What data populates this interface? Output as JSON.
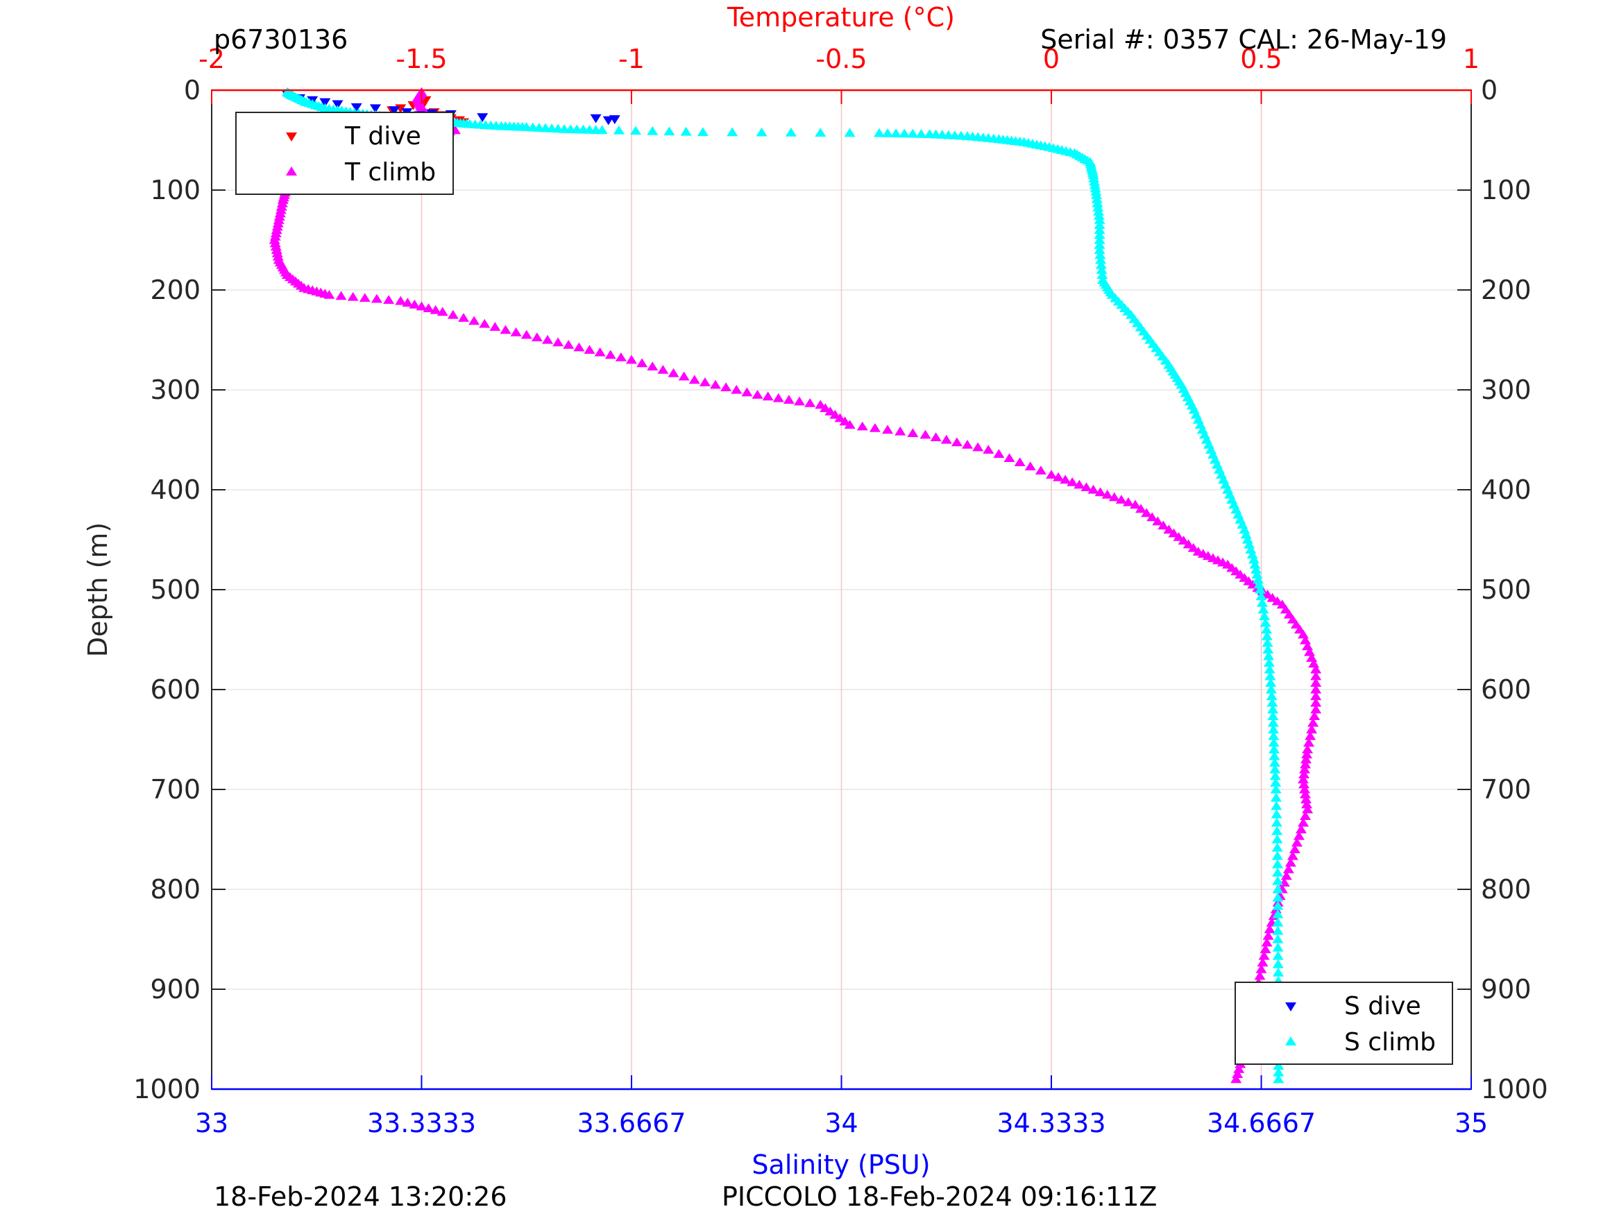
{
  "header": {
    "left_label": "p6730136",
    "right_label": "Serial #: 0357  CAL: 26-May-19"
  },
  "footer": {
    "left_label": "18-Feb-2024 13:20:26",
    "right_label": "PICCOLO 18-Feb-2024 09:16:11Z"
  },
  "colors": {
    "t_dive": "#ff0000",
    "t_climb": "#ff00ff",
    "s_dive": "#0000ff",
    "s_climb": "#00ffff",
    "temp_axis": "#ff0000",
    "sal_axis": "#0000ff",
    "grid": "#e6e6e6",
    "temp_grid": "#f4c6c6"
  },
  "chart_data": {
    "type": "scatter",
    "top_xlabel": "Temperature (°C)",
    "bottom_xlabel": "Salinity (PSU)",
    "ylabel": "Depth (m)",
    "temperature_axis": {
      "range": [
        -2,
        1
      ],
      "ticks": [
        "-2",
        "-1.5",
        "-1",
        "-0.5",
        "0",
        "0.5",
        "1"
      ]
    },
    "salinity_axis": {
      "range": [
        33,
        35
      ],
      "ticks": [
        "33",
        "33.3333",
        "33.6667",
        "34",
        "34.3333",
        "34.6667",
        "35"
      ]
    },
    "depth_axis": {
      "range": [
        0,
        1000
      ],
      "reversed": true,
      "ticks": [
        "0",
        "100",
        "200",
        "300",
        "400",
        "500",
        "600",
        "700",
        "800",
        "900",
        "1000"
      ]
    },
    "grid": true,
    "legends": [
      {
        "placement": "top-left",
        "entries": [
          "T dive",
          "T climb"
        ]
      },
      {
        "placement": "bottom-right",
        "entries": [
          "S dive",
          "S climb"
        ]
      }
    ],
    "series": [
      {
        "name": "T dive",
        "axis": "temperature",
        "marker": "triangle-down",
        "points": [
          [
            -1.57,
            20
          ],
          [
            -1.55,
            18
          ],
          [
            -1.52,
            15
          ],
          [
            -1.5,
            12
          ],
          [
            -1.49,
            10
          ],
          [
            -1.5,
            17
          ],
          [
            -1.47,
            22
          ],
          [
            -1.45,
            25
          ],
          [
            -1.43,
            28
          ],
          [
            -1.41,
            30
          ],
          [
            -1.4,
            32
          ]
        ]
      },
      {
        "name": "T climb",
        "axis": "temperature",
        "marker": "triangle-up",
        "points": [
          [
            -1.5,
            2
          ],
          [
            -1.51,
            8
          ],
          [
            -1.5,
            18
          ],
          [
            -1.48,
            28
          ],
          [
            -1.45,
            34
          ],
          [
            -1.42,
            40
          ],
          [
            -1.5,
            47
          ],
          [
            -1.65,
            55
          ],
          [
            -1.75,
            68
          ],
          [
            -1.8,
            80
          ],
          [
            -1.82,
            95
          ],
          [
            -1.83,
            110
          ],
          [
            -1.84,
            130
          ],
          [
            -1.85,
            150
          ],
          [
            -1.84,
            170
          ],
          [
            -1.82,
            185
          ],
          [
            -1.78,
            198
          ],
          [
            -1.72,
            205
          ],
          [
            -1.55,
            211
          ],
          [
            -1.45,
            222
          ],
          [
            -1.3,
            240
          ],
          [
            -1.15,
            255
          ],
          [
            -1.0,
            270
          ],
          [
            -0.85,
            290
          ],
          [
            -0.7,
            305
          ],
          [
            -0.55,
            315
          ],
          [
            -0.48,
            335
          ],
          [
            -0.3,
            345
          ],
          [
            -0.15,
            360
          ],
          [
            0.0,
            385
          ],
          [
            0.1,
            400
          ],
          [
            0.2,
            415
          ],
          [
            0.28,
            440
          ],
          [
            0.35,
            462
          ],
          [
            0.42,
            475
          ],
          [
            0.48,
            495
          ],
          [
            0.55,
            515
          ],
          [
            0.6,
            545
          ],
          [
            0.63,
            580
          ],
          [
            0.63,
            620
          ],
          [
            0.61,
            660
          ],
          [
            0.6,
            690
          ],
          [
            0.61,
            720
          ],
          [
            0.58,
            760
          ],
          [
            0.55,
            800
          ],
          [
            0.52,
            840
          ],
          [
            0.5,
            880
          ],
          [
            0.48,
            920
          ],
          [
            0.46,
            960
          ],
          [
            0.44,
            990
          ]
        ]
      },
      {
        "name": "S dive",
        "axis": "salinity",
        "marker": "triangle-down",
        "points": [
          [
            33.12,
            4
          ],
          [
            33.14,
            8
          ],
          [
            33.16,
            10
          ],
          [
            33.18,
            12
          ],
          [
            33.2,
            14
          ],
          [
            33.23,
            17
          ],
          [
            33.26,
            18
          ],
          [
            33.29,
            20
          ],
          [
            33.31,
            22
          ],
          [
            33.33,
            25
          ],
          [
            33.35,
            23
          ],
          [
            33.38,
            24
          ],
          [
            33.43,
            27
          ],
          [
            33.61,
            28
          ],
          [
            33.63,
            30
          ],
          [
            33.64,
            29
          ]
        ]
      },
      {
        "name": "S climb",
        "axis": "salinity",
        "marker": "triangle-up",
        "points": [
          [
            33.12,
            2
          ],
          [
            33.13,
            6
          ],
          [
            33.15,
            12
          ],
          [
            33.18,
            18
          ],
          [
            33.22,
            22
          ],
          [
            33.26,
            25
          ],
          [
            33.3,
            28
          ],
          [
            33.35,
            30
          ],
          [
            33.38,
            32
          ],
          [
            33.41,
            34
          ],
          [
            33.46,
            36
          ],
          [
            33.5,
            37
          ],
          [
            33.56,
            39
          ],
          [
            33.62,
            40
          ],
          [
            33.78,
            42
          ],
          [
            34.06,
            43
          ],
          [
            34.14,
            44
          ],
          [
            34.2,
            46
          ],
          [
            34.25,
            49
          ],
          [
            34.29,
            52
          ],
          [
            34.33,
            57
          ],
          [
            34.37,
            63
          ],
          [
            34.395,
            72
          ],
          [
            34.4,
            85
          ],
          [
            34.405,
            105
          ],
          [
            34.41,
            130
          ],
          [
            34.41,
            160
          ],
          [
            34.415,
            190
          ],
          [
            34.43,
            205
          ],
          [
            34.46,
            225
          ],
          [
            34.49,
            250
          ],
          [
            34.52,
            275
          ],
          [
            34.54,
            295
          ],
          [
            34.56,
            320
          ],
          [
            34.58,
            350
          ],
          [
            34.6,
            380
          ],
          [
            34.62,
            410
          ],
          [
            34.64,
            440
          ],
          [
            34.655,
            470
          ],
          [
            34.665,
            500
          ],
          [
            34.675,
            540
          ],
          [
            34.68,
            580
          ],
          [
            34.685,
            620
          ],
          [
            34.687,
            660
          ],
          [
            34.69,
            700
          ],
          [
            34.692,
            750
          ],
          [
            34.693,
            800
          ],
          [
            34.693,
            850
          ],
          [
            34.694,
            900
          ],
          [
            34.694,
            950
          ],
          [
            34.694,
            990
          ]
        ]
      }
    ]
  }
}
